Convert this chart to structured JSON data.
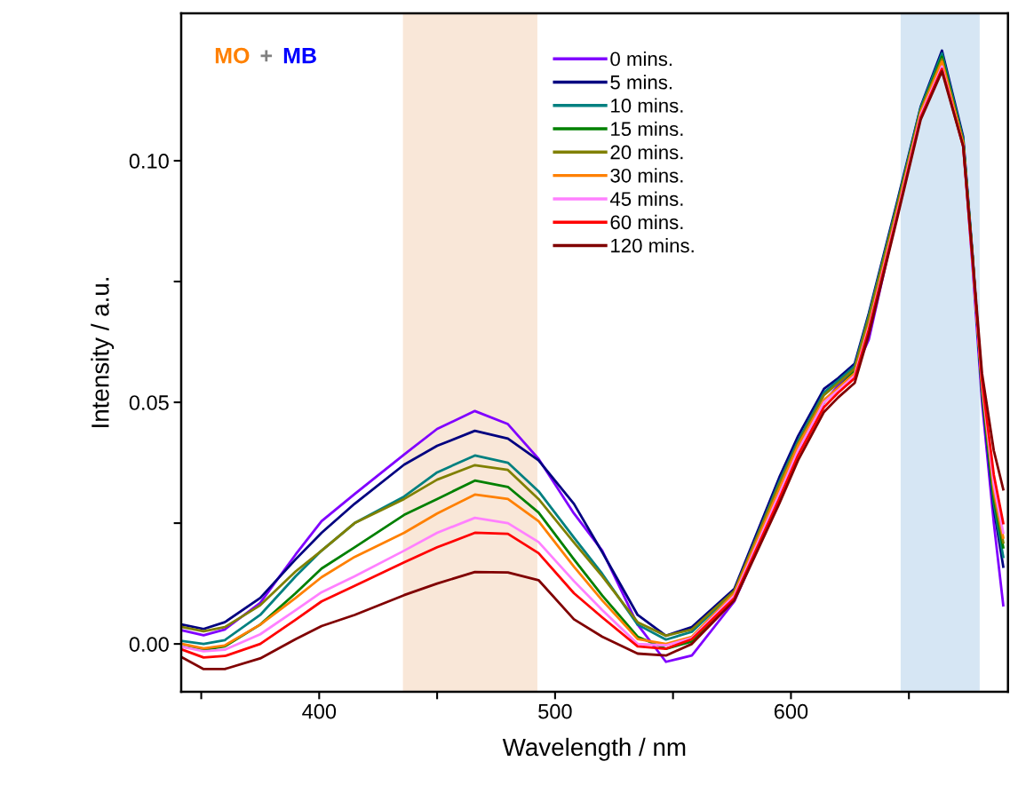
{
  "chart_data": {
    "type": "line",
    "xlabel": "Wavelength / nm",
    "ylabel": "Intensity / a.u.",
    "x": [
      342,
      351,
      360,
      375,
      390,
      401,
      415,
      436,
      450,
      466,
      480,
      493,
      508,
      520,
      535,
      547,
      558,
      576,
      595,
      603,
      614,
      620,
      627,
      633,
      645,
      655,
      664,
      673,
      677,
      681,
      686,
      690
    ],
    "series": [
      {
        "name": "0 mins.",
        "color": "#8000ff",
        "values": [
          0.0028,
          0.0018,
          0.003,
          0.0085,
          0.0185,
          0.0254,
          0.031,
          0.0392,
          0.0445,
          0.0482,
          0.0455,
          0.0383,
          0.027,
          0.0193,
          0.004,
          -0.0037,
          -0.0024,
          0.0088,
          0.0298,
          0.0397,
          0.05,
          0.0535,
          0.0565,
          0.063,
          0.089,
          0.11,
          0.1215,
          0.104,
          0.078,
          0.05,
          0.025,
          0.008
        ]
      },
      {
        "name": "5 mins.",
        "color": "#000080",
        "values": [
          0.004,
          0.0031,
          0.0045,
          0.0095,
          0.0175,
          0.023,
          0.029,
          0.0371,
          0.041,
          0.0441,
          0.0425,
          0.038,
          0.029,
          0.019,
          0.006,
          0.0017,
          0.0035,
          0.0114,
          0.0344,
          0.043,
          0.0528,
          0.055,
          0.058,
          0.0684,
          0.0915,
          0.1112,
          0.1228,
          0.105,
          0.0805,
          0.0515,
          0.028,
          0.016
        ]
      },
      {
        "name": "10 mins.",
        "color": "#008080",
        "values": [
          0.0006,
          0.0,
          0.0008,
          0.006,
          0.014,
          0.0193,
          0.025,
          0.0305,
          0.0355,
          0.039,
          0.0375,
          0.0316,
          0.022,
          0.0145,
          0.004,
          0.0009,
          0.0025,
          0.0108,
          0.0335,
          0.042,
          0.052,
          0.0545,
          0.0575,
          0.068,
          0.091,
          0.111,
          0.1222,
          0.1045,
          0.08,
          0.052,
          0.029,
          0.018
        ]
      },
      {
        "name": "15 mins.",
        "color": "#008000",
        "values": [
          -0.0006,
          -0.0012,
          -0.0005,
          0.004,
          0.0105,
          0.0156,
          0.02,
          0.0267,
          0.03,
          0.0338,
          0.0325,
          0.0272,
          0.0175,
          0.01,
          0.0015,
          -0.001,
          0.0005,
          0.0095,
          0.031,
          0.04,
          0.05,
          0.053,
          0.0565,
          0.067,
          0.0905,
          0.1105,
          0.1215,
          0.104,
          0.08,
          0.0525,
          0.03,
          0.02
        ]
      },
      {
        "name": "20 mins.",
        "color": "#808000",
        "values": [
          0.0035,
          0.0026,
          0.0035,
          0.008,
          0.015,
          0.0193,
          0.025,
          0.03,
          0.034,
          0.037,
          0.036,
          0.03,
          0.021,
          0.014,
          0.0045,
          0.0017,
          0.003,
          0.011,
          0.033,
          0.0415,
          0.0515,
          0.054,
          0.057,
          0.0675,
          0.0905,
          0.1105,
          0.121,
          0.104,
          0.08,
          0.053,
          0.031,
          0.021
        ]
      },
      {
        "name": "30 mins.",
        "color": "#ff8000",
        "values": [
          0.0,
          -0.0009,
          -0.0003,
          0.004,
          0.0095,
          0.0138,
          0.018,
          0.023,
          0.027,
          0.0309,
          0.03,
          0.0254,
          0.016,
          0.009,
          0.001,
          0.0,
          0.0015,
          0.0105,
          0.032,
          0.041,
          0.0505,
          0.053,
          0.056,
          0.066,
          0.0895,
          0.11,
          0.1205,
          0.1035,
          0.0795,
          0.0535,
          0.032,
          0.022
        ]
      },
      {
        "name": "45 mins.",
        "color": "#ff80ff",
        "values": [
          -0.0006,
          -0.0015,
          -0.0012,
          0.002,
          0.007,
          0.0107,
          0.014,
          0.0193,
          0.023,
          0.0261,
          0.025,
          0.0211,
          0.013,
          0.007,
          0.0,
          -0.0003,
          0.0012,
          0.01,
          0.031,
          0.04,
          0.05,
          0.0525,
          0.0555,
          0.0655,
          0.089,
          0.1095,
          0.1195,
          0.103,
          0.079,
          0.054,
          0.033,
          0.023
        ]
      },
      {
        "name": "60 mins.",
        "color": "#ff0000",
        "values": [
          -0.0012,
          -0.0028,
          -0.0025,
          0.0,
          0.005,
          0.0088,
          0.012,
          0.0169,
          0.02,
          0.023,
          0.0228,
          0.0188,
          0.0105,
          0.0055,
          -0.0005,
          -0.001,
          0.001,
          0.0095,
          0.03,
          0.039,
          0.049,
          0.052,
          0.055,
          0.065,
          0.0885,
          0.109,
          0.119,
          0.103,
          0.079,
          0.0545,
          0.035,
          0.025
        ]
      },
      {
        "name": "120 mins.",
        "color": "#800000",
        "values": [
          -0.0028,
          -0.0052,
          -0.0052,
          -0.003,
          0.001,
          0.0037,
          0.006,
          0.0101,
          0.0125,
          0.0149,
          0.0148,
          0.0132,
          0.0051,
          0.0015,
          -0.002,
          -0.0024,
          0.0,
          0.009,
          0.029,
          0.038,
          0.048,
          0.051,
          0.054,
          0.064,
          0.088,
          0.1085,
          0.1185,
          0.103,
          0.08,
          0.056,
          0.04,
          0.032
        ]
      }
    ],
    "xlim": [
      341.5,
      692
    ],
    "xticks": [
      {
        "value": 350,
        "label": null
      },
      400,
      {
        "value": 450,
        "label": null
      },
      500,
      {
        "value": 550,
        "label": null
      },
      600,
      {
        "value": 650,
        "label": null
      }
    ],
    "ylim": [
      -0.0099,
      0.1305
    ],
    "yticks": [
      {
        "value": 0,
        "label": "0.00"
      },
      {
        "value": 0.025,
        "label": null
      },
      {
        "value": 0.05,
        "label": "0.05"
      },
      {
        "value": 0.075,
        "label": null
      },
      {
        "value": 0.1,
        "label": "0.10"
      }
    ],
    "bands": [
      {
        "axis": "x",
        "from": 435.5,
        "to": 492.5,
        "color": "#f9e7d8"
      },
      {
        "axis": "x",
        "from": 646.5,
        "to": 680,
        "color": "#d6e6f4"
      }
    ],
    "annotations": [
      "MO",
      "+",
      "MB"
    ],
    "legend": "top",
    "grid": false,
    "line_style": "solid",
    "marker": "none"
  }
}
